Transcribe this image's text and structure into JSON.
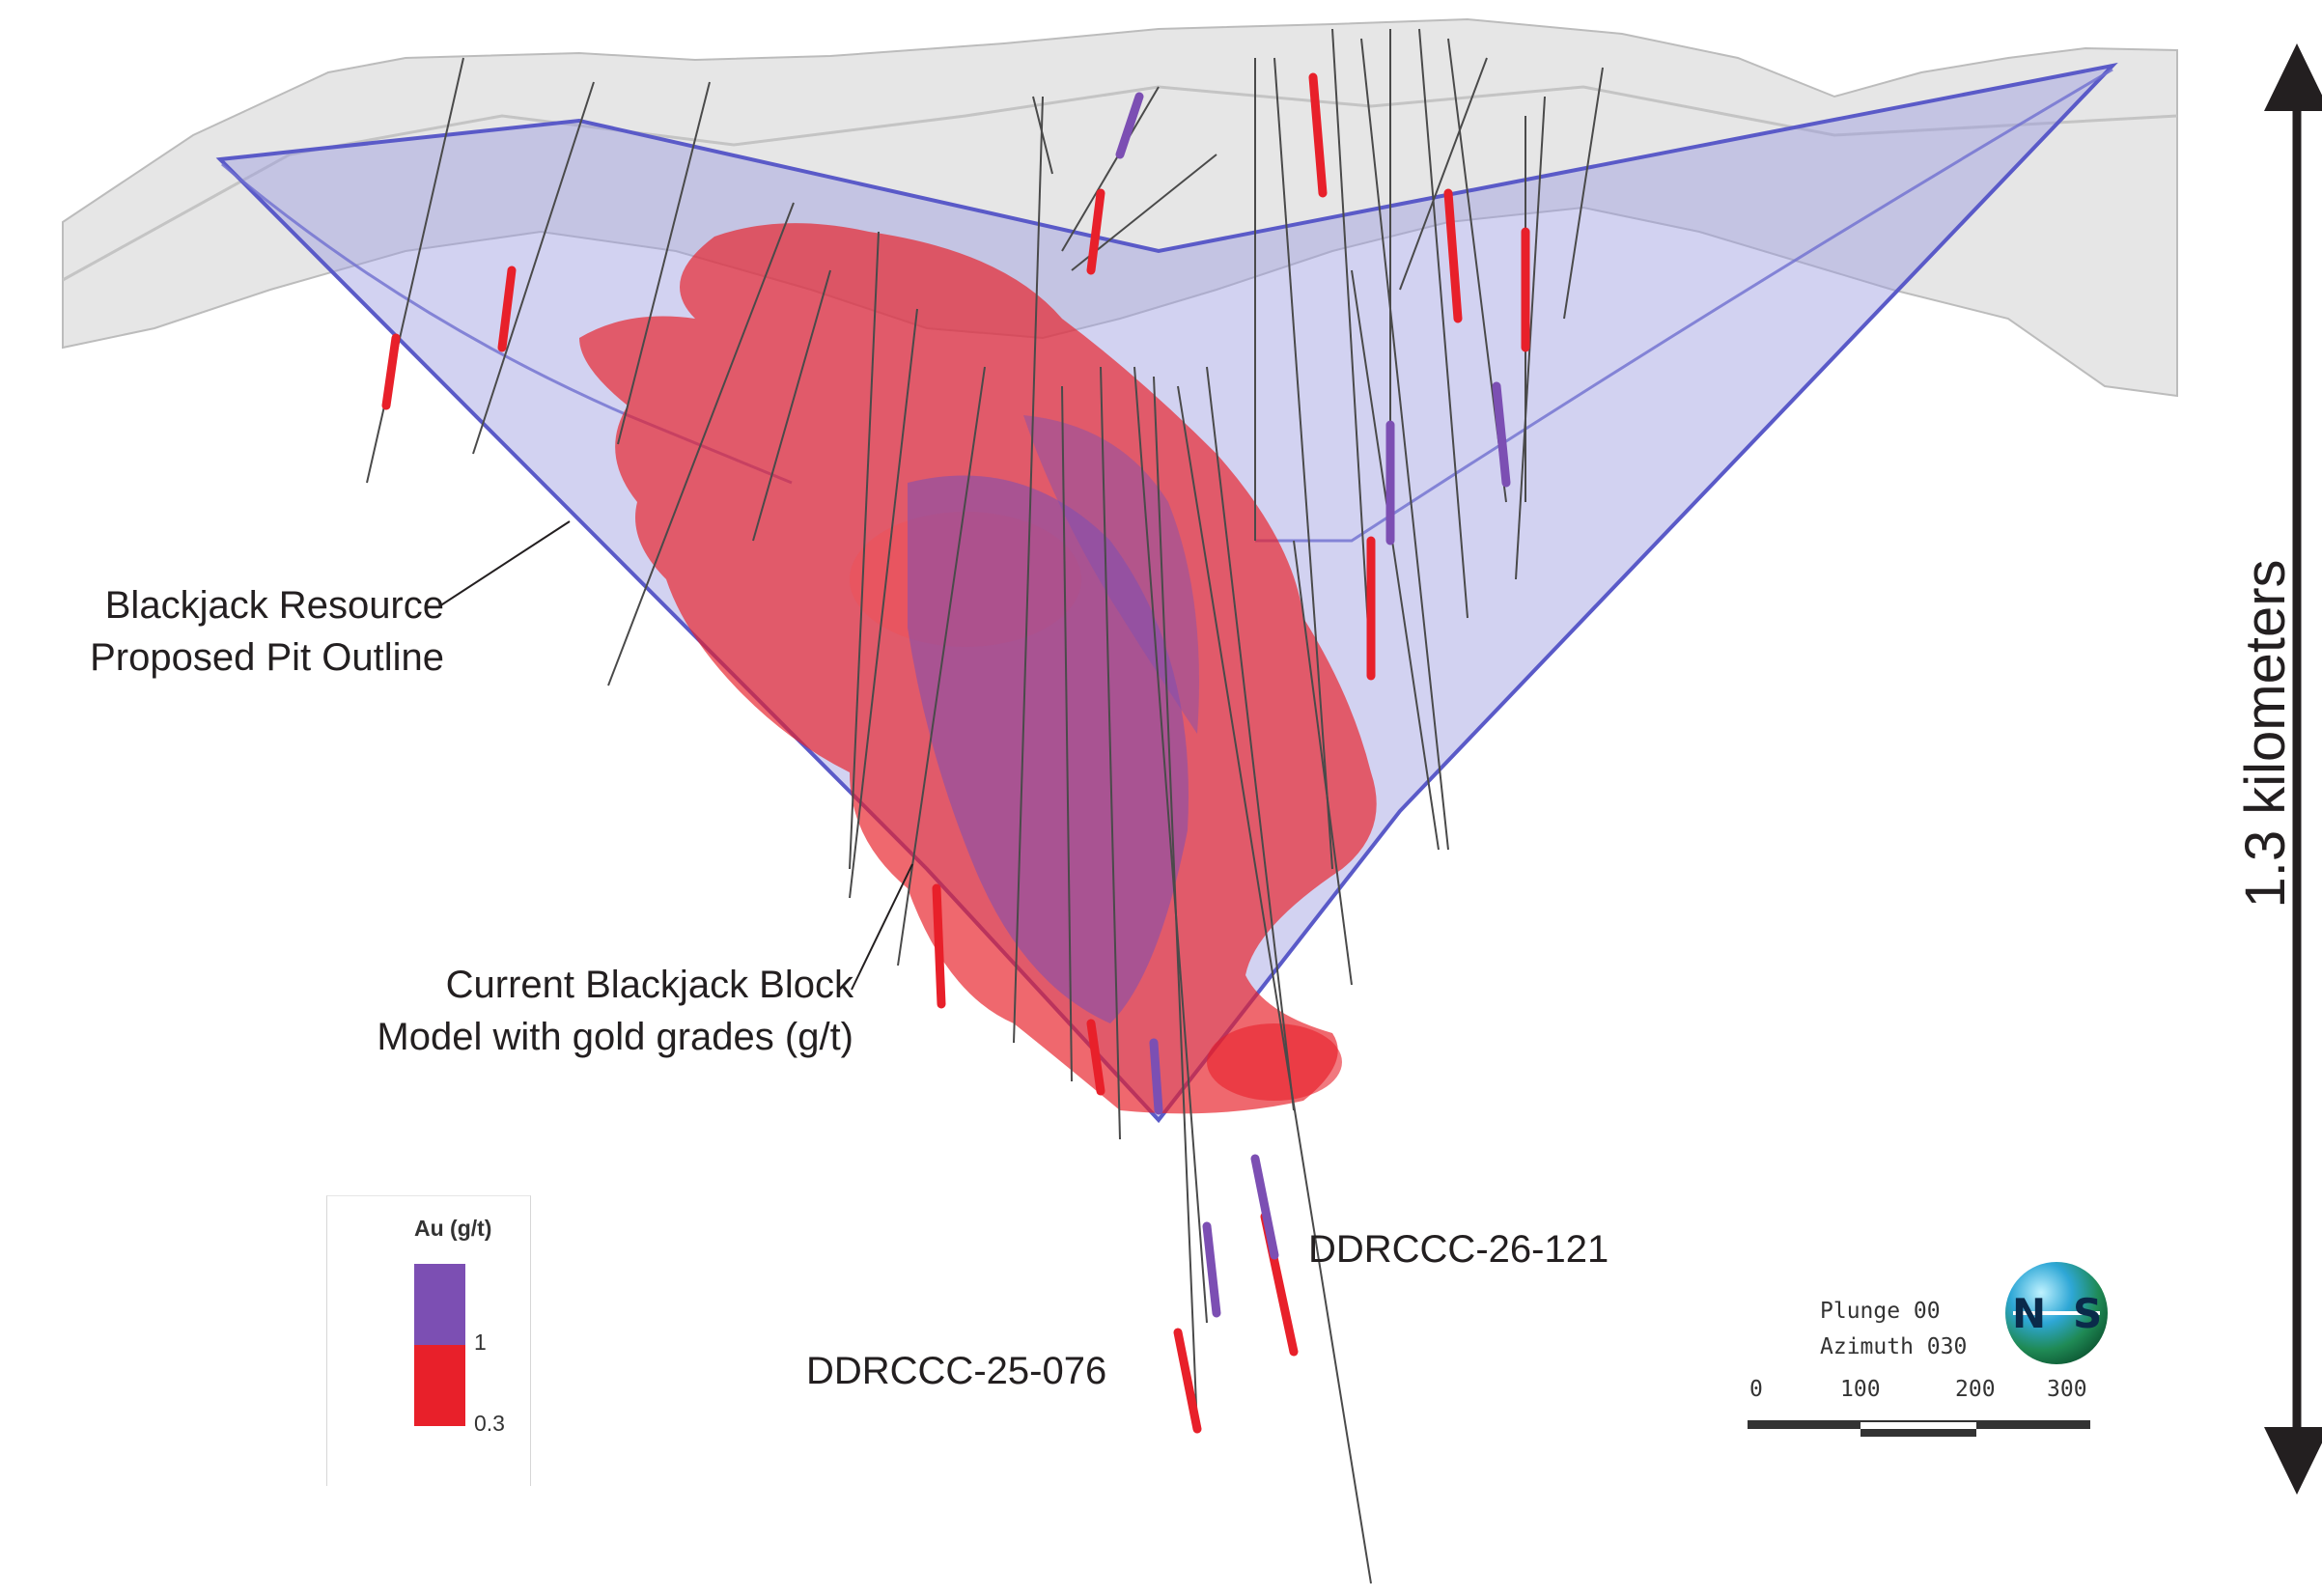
{
  "annotations": {
    "pit_outline_line1": "Blackjack Resource",
    "pit_outline_line2": "Proposed Pit Outline",
    "block_model_line1": "Current Blackjack Block",
    "block_model_line2": "Model with gold grades (g/t)",
    "drillhole_a": "DDRCCC-26-121",
    "drillhole_b": "DDRCCC-25-076"
  },
  "legend": {
    "title": "Au (g/t)",
    "upper_value": "1",
    "lower_value": "0.3",
    "upper_color": "#7c4fb3",
    "lower_color": "#e8202a"
  },
  "orientation": {
    "plunge": "Plunge 00",
    "azimuth": "Azimuth 030",
    "compass_n": "N",
    "compass_s": "S",
    "scale_ticks": [
      "0",
      "100",
      "200",
      "300"
    ]
  },
  "vertical_scale": {
    "label": "1.3 kilometers"
  },
  "colors": {
    "pit_fill": "#9c9ce0",
    "pit_edge": "#5a5ac8",
    "block_red": "#e8202a",
    "grade_purple": "#7c4fb3",
    "topo_gray": "#d9d9d9",
    "drill_trace": "#555555"
  }
}
